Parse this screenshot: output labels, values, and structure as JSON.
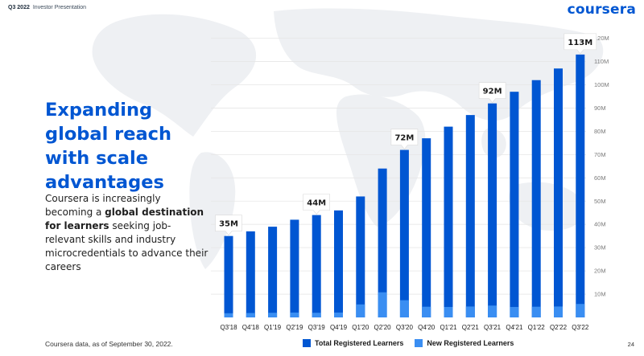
{
  "header": {
    "quarter": "Q3 2022",
    "subtitle": "Investor Presentation",
    "logo": "coursera"
  },
  "headline": {
    "line1": "Expanding",
    "line2": "global reach",
    "line3": "with scale",
    "line4": "advantages"
  },
  "subtext": {
    "part1": "Coursera is increasingly becoming a ",
    "bold": "global destination for learners",
    "part2": " seeking job-relevant skills and industry microcredentials to advance their careers"
  },
  "footnote": "Coursera data, as of September 30, 2022.",
  "page_number": "24",
  "colors": {
    "brand": "#0056d2",
    "total_bar": "#0056d2",
    "new_bar": "#3a8ef2",
    "map": "#eef0f3",
    "grid": "#e6e6e6"
  },
  "legend": {
    "total_label": "Total Registered Learners",
    "new_label": "New Registered Learners"
  },
  "chart_data": {
    "type": "bar",
    "categories": [
      "Q3'18",
      "Q4'18",
      "Q1'19",
      "Q2'19",
      "Q3'19",
      "Q4'19",
      "Q1'20",
      "Q2'20",
      "Q3'20",
      "Q4'20",
      "Q1'21",
      "Q2'21",
      "Q3'21",
      "Q4'21",
      "Q1'22",
      "Q2'22",
      "Q3'22"
    ],
    "series": [
      {
        "name": "Total Registered Learners",
        "values": [
          35,
          37,
          39,
          42,
          44,
          46,
          52,
          64,
          72,
          77,
          82,
          87,
          92,
          97,
          102,
          107,
          113
        ]
      },
      {
        "name": "New Registered Learners",
        "values": [
          1.8,
          1.9,
          2.0,
          2.1,
          2.0,
          2.1,
          5.6,
          10.8,
          7.4,
          4.6,
          4.5,
          4.7,
          5.1,
          4.5,
          4.6,
          4.7,
          5.8
        ]
      }
    ],
    "callouts": [
      {
        "index": 0,
        "label": "35M"
      },
      {
        "index": 4,
        "label": "44M"
      },
      {
        "index": 8,
        "label": "72M"
      },
      {
        "index": 12,
        "label": "92M"
      },
      {
        "index": 16,
        "label": "113M"
      }
    ],
    "y_ticks": [
      "10M",
      "20M",
      "30M",
      "40M",
      "50M",
      "60M",
      "70M",
      "80M",
      "90M",
      "100M",
      "110M",
      "120M"
    ],
    "ylim": [
      0,
      120
    ],
    "grid": true,
    "legend_position": "bottom"
  }
}
